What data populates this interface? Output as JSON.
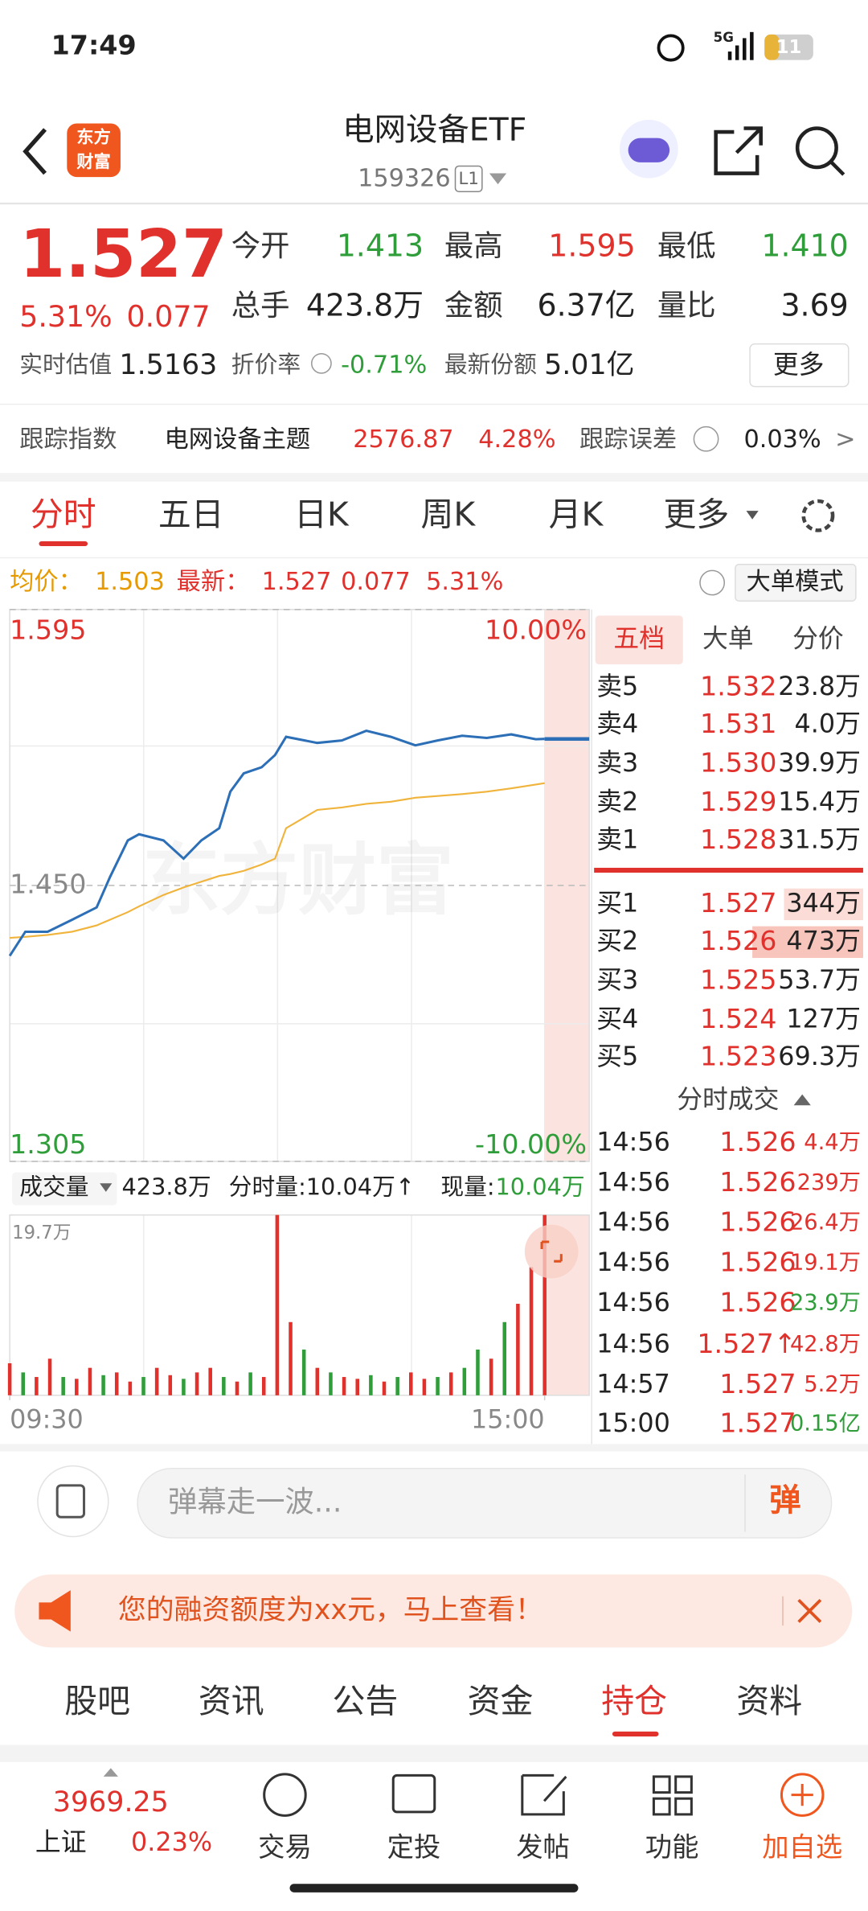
{
  "status_bar": {
    "time": "17:49",
    "network": "5G",
    "battery": "11"
  },
  "header": {
    "logo_top": "东方",
    "logo_bottom": "财富",
    "title": "电网设备ETF",
    "code": "159326",
    "badge": "L1"
  },
  "quote": {
    "price": "1.527",
    "change_pct": "5.31%",
    "change": "0.077",
    "stats": [
      [
        "今开",
        "1.413"
      ],
      [
        "最高",
        "1.595"
      ],
      [
        "最低",
        "1.410"
      ],
      [
        "总手",
        "423.8万"
      ],
      [
        "金额",
        "6.37亿"
      ],
      [
        "量比",
        "3.69"
      ]
    ],
    "estimate_label": "实时估值",
    "estimate": "1.5163",
    "discount_label": "折价率",
    "discount": "-0.71%",
    "shares_label": "最新份额",
    "shares": "5.01亿",
    "more": "更多"
  },
  "tracking": {
    "label": "跟踪指数",
    "index": "电网设备主题",
    "value": "2576.87",
    "pct": "4.28%",
    "error_label": "跟踪误差",
    "error": "0.03%",
    "arrow": ">"
  },
  "tabs": [
    "分时",
    "五日",
    "日K",
    "周K",
    "月K",
    "更多"
  ],
  "chart_info": {
    "avg_label": "均价：",
    "avg": "1.503",
    "last_label": "最新：",
    "last": "1.527",
    "change": "0.077",
    "pct": "5.31%",
    "big_order": "大单模式"
  },
  "watermark": "东方财富",
  "chart_data": [
    {
      "type": "line",
      "x": [
        0,
        7,
        17,
        28,
        39,
        45,
        53,
        58,
        69,
        78,
        86,
        94,
        99,
        105,
        113,
        119,
        124,
        138,
        149,
        160,
        171,
        182,
        192,
        203,
        214,
        225,
        236,
        240
      ],
      "xlim": [
        0,
        260
      ],
      "ylim": [
        1.305,
        1.595
      ],
      "yticks": [
        1.305,
        {
          "value": 1.45,
          "label": "1.450"
        },
        1.595
      ],
      "y2lim": [
        -10,
        10
      ],
      "y2ticks": [
        {
          "value": -10,
          "label": "-10.00%"
        },
        {
          "value": 10,
          "label": "10.00%"
        }
      ],
      "series": [
        {
          "color": "#2c6fb7",
          "values": [
            1.413,
            1.4257,
            1.4257,
            1.432,
            1.4385,
            1.4545,
            1.4737,
            1.4769,
            1.4737,
            1.4641,
            1.4737,
            1.4801,
            1.4993,
            1.5089,
            1.5121,
            1.5185,
            1.5281,
            1.5249,
            1.5262,
            1.5313,
            1.5281,
            1.5236,
            1.5262,
            1.5287,
            1.5275,
            1.5294,
            1.5268,
            1.527
          ]
        },
        {
          "color": "#f0b43c",
          "values": [
            1.4225,
            1.423,
            1.424,
            1.4257,
            1.429,
            1.432,
            1.436,
            1.439,
            1.445,
            1.449,
            1.452,
            1.455,
            1.456,
            1.4577,
            1.461,
            1.4641,
            1.4801,
            1.4897,
            1.491,
            1.4929,
            1.494,
            1.4961,
            1.497,
            1.498,
            1.4993,
            1.501,
            1.503,
            1.5038
          ]
        }
      ]
    },
    {
      "type": "bar",
      "x": [
        0,
        6,
        12,
        18,
        24,
        30,
        36,
        42,
        48,
        54,
        60,
        66,
        72,
        78,
        84,
        90,
        96,
        102,
        108,
        114,
        120,
        126,
        132,
        138,
        144,
        150,
        156,
        162,
        168,
        174,
        180,
        186,
        192,
        198,
        204,
        210,
        216,
        222,
        228,
        234,
        240
      ],
      "values": [
        3.5,
        2.5,
        2,
        4,
        2,
        1.8,
        3,
        2.2,
        2.5,
        1.5,
        2,
        3,
        2.2,
        1.8,
        2.5,
        3,
        2,
        1.5,
        2.5,
        2,
        19.7,
        8,
        5,
        3,
        2.5,
        2,
        1.8,
        2.2,
        1.5,
        2,
        2.5,
        1.8,
        2,
        2.5,
        3,
        5,
        4,
        8,
        10,
        14,
        19.7
      ],
      "colors": [
        "#e0312c",
        "#2f9e3a",
        "#e0312c",
        "#e0312c",
        "#2f9e3a",
        "#e0312c",
        "#e0312c",
        "#2f9e3a",
        "#e0312c",
        "#e0312c",
        "#2f9e3a",
        "#e0312c",
        "#e0312c",
        "#2f9e3a",
        "#e0312c",
        "#e0312c",
        "#2f9e3a",
        "#e0312c",
        "#2f9e3a",
        "#e0312c",
        "#e0312c",
        "#e0312c",
        "#2f9e3a",
        "#e0312c",
        "#2f9e3a",
        "#e0312c",
        "#e0312c",
        "#2f9e3a",
        "#e0312c",
        "#2f9e3a",
        "#e0312c",
        "#e0312c",
        "#2f9e3a",
        "#e0312c",
        "#2f9e3a",
        "#2f9e3a",
        "#e0312c",
        "#2f9e3a",
        "#e0312c",
        "#e0312c",
        "#e0312c"
      ],
      "xlim": [
        0,
        260
      ],
      "xticks": [
        {
          "value": 0,
          "label": "09:30"
        },
        {
          "value": 240,
          "label": "15:00"
        }
      ],
      "ylim": [
        0,
        19.7
      ],
      "yticks": [
        {
          "value": 19.7,
          "label": "19.7万"
        }
      ]
    }
  ],
  "volume_info": {
    "label": "成交量",
    "total": "423.8万",
    "minute": "分时量:10.04万↑",
    "current_label": "现量:",
    "current": "10.04万"
  },
  "order_book": {
    "tabs": [
      "五档",
      "大单",
      "分价"
    ],
    "asks": [
      [
        "卖5",
        "1.532",
        "23.8万"
      ],
      [
        "卖4",
        "1.531",
        "4.0万"
      ],
      [
        "卖3",
        "1.530",
        "39.9万"
      ],
      [
        "卖2",
        "1.529",
        "15.4万"
      ],
      [
        "卖1",
        "1.528",
        "31.5万"
      ]
    ],
    "bids": [
      [
        "买1",
        "1.527",
        "344万"
      ],
      [
        "买2",
        "1.526",
        "473万"
      ],
      [
        "买3",
        "1.525",
        "53.7万"
      ],
      [
        "买4",
        "1.524",
        "127万"
      ],
      [
        "买5",
        "1.523",
        "69.3万"
      ]
    ]
  },
  "trades": {
    "title": "分时成交",
    "rows": [
      {
        "time": "14:56",
        "price": "1.526",
        "volume": "4.4万",
        "color": "#e0312c"
      },
      {
        "time": "14:56",
        "price": "1.526",
        "volume": "239万",
        "color": "#e0312c"
      },
      {
        "time": "14:56",
        "price": "1.526",
        "volume": "26.4万",
        "color": "#e0312c"
      },
      {
        "time": "14:56",
        "price": "1.526",
        "volume": "19.1万",
        "color": "#e0312c"
      },
      {
        "time": "14:56",
        "price": "1.526",
        "volume": "23.9万",
        "color": "#2f9e3a"
      },
      {
        "time": "14:56",
        "price": "1.527↑",
        "volume": "42.8万",
        "color": "#e0312c"
      },
      {
        "time": "14:57",
        "price": "1.527",
        "volume": "5.2万",
        "color": "#e0312c"
      },
      {
        "time": "15:00",
        "price": "1.527",
        "volume": "0.15亿",
        "color": "#2f9e3a"
      }
    ]
  },
  "comment": {
    "placeholder": "弹幕走一波...",
    "button": "弹"
  },
  "banner": {
    "text": "您的融资额度为xx元，马上查看！"
  },
  "nav_tabs": [
    "股吧",
    "资讯",
    "公告",
    "资金",
    "持仓",
    "资料"
  ],
  "bottom_bar": {
    "index_value": "3969.25",
    "index_name": "上证",
    "index_pct": "0.23%",
    "items": [
      "交易",
      "定投",
      "发帖",
      "功能",
      "加自选"
    ]
  }
}
